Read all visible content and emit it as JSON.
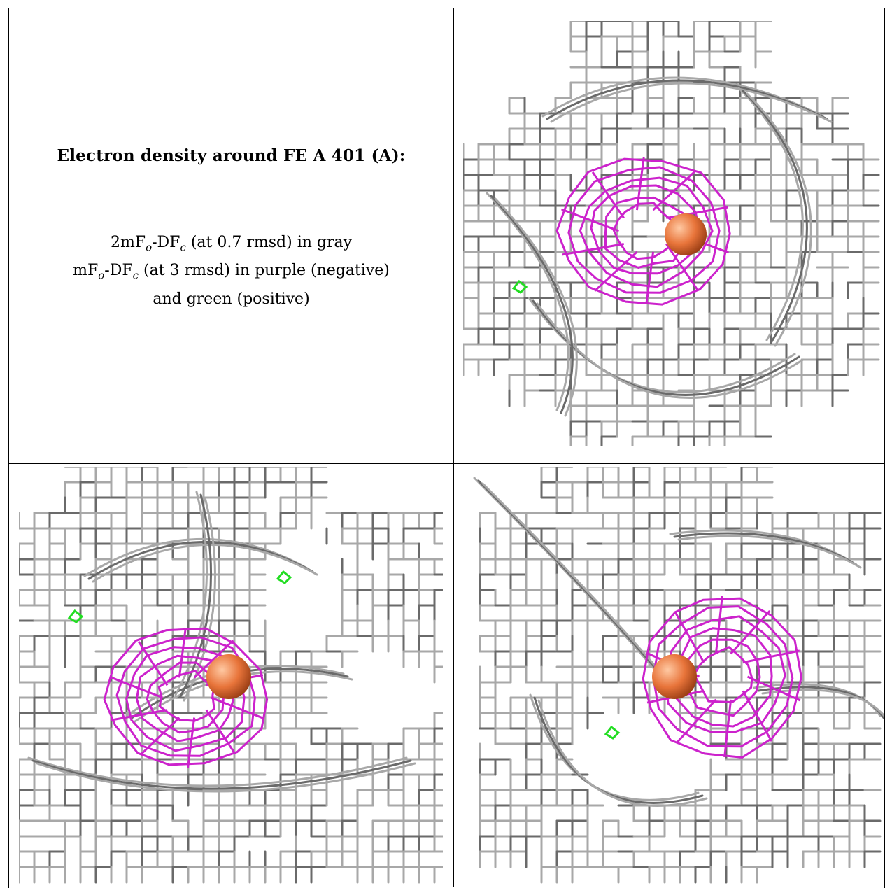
{
  "caption": {
    "title": "Electron density around FE A 401 (A):",
    "line1": {
      "a": "2mF",
      "b": "o",
      "c": "-DF",
      "d": "c",
      "e": " (at 0.7 rmsd) in gray"
    },
    "line2": {
      "a": "mF",
      "b": "o",
      "c": "-DF",
      "d": "c",
      "e": " (at 3 rmsd) in purple (negative)"
    },
    "line3": "and green (positive)"
  },
  "colors": {
    "mesh_gray": "#a8a8a8",
    "mesh_dark": "#6a6a6a",
    "negative": "#cc22cc",
    "positive": "#22dd22",
    "atom": "#e8743a"
  },
  "panels": [
    {
      "name": "view-top-right"
    },
    {
      "name": "view-bottom-left"
    },
    {
      "name": "view-bottom-right"
    }
  ]
}
